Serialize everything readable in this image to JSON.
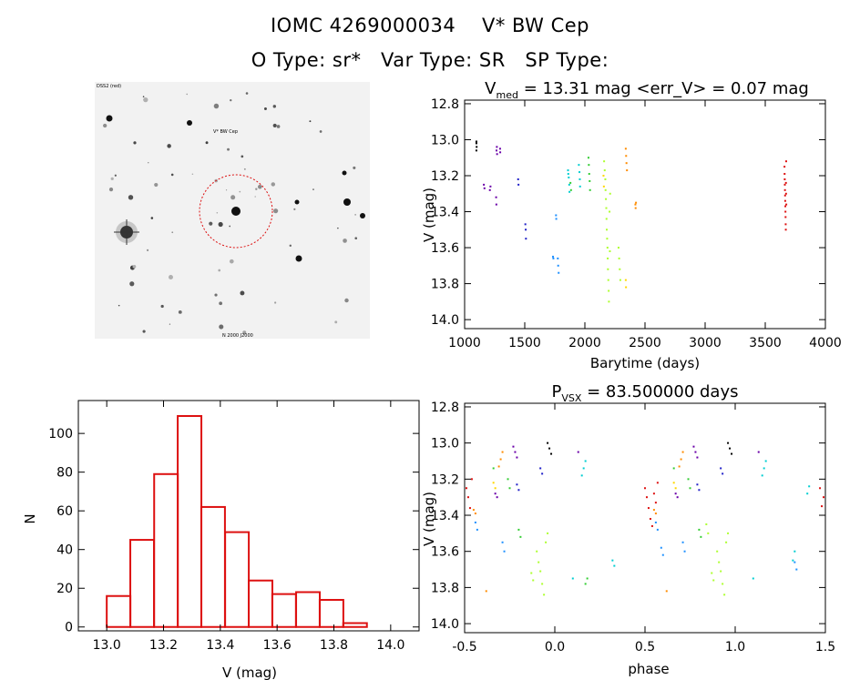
{
  "header": {
    "line1": "IOMC 4269000034    V* BW Cep",
    "line2": "O Type: sr*   Var Type: SR   SP Type:"
  },
  "image_panel": {
    "label_top_left": "DSS2 (red)",
    "label_top_center": "V* BW Cep",
    "label_bottom_center": "N 2000 J2000"
  },
  "chart_data": [
    {
      "type": "scatter",
      "id": "lightcurve",
      "title_main": "V",
      "title_sub": "med",
      "title_rest": " = 13.31 mag <err_V> = 0.07 mag",
      "xlabel": "Barytime (days)",
      "ylabel": "V (mag)",
      "xlim": [
        1000,
        4000
      ],
      "ylim": [
        14.05,
        12.78
      ],
      "y_inverted": true,
      "xticks": [
        1000,
        1500,
        2000,
        2500,
        3000,
        3500,
        4000
      ],
      "yticks": [
        12.8,
        13.0,
        13.2,
        13.4,
        13.6,
        13.8,
        14.0
      ],
      "series": [
        {
          "color": "#000000",
          "points": [
            [
              1098,
              13.02
            ],
            [
              1098,
              13.06
            ],
            [
              1098,
              13.01
            ],
            [
              1100,
              13.04
            ]
          ]
        },
        {
          "color": "#6a00a8",
          "points": [
            [
              1160,
              13.25
            ],
            [
              1165,
              13.27
            ],
            [
              1210,
              13.28
            ],
            [
              1215,
              13.26
            ],
            [
              1262,
              13.32
            ],
            [
              1264,
              13.36
            ],
            [
              1265,
              13.06
            ],
            [
              1268,
              13.04
            ],
            [
              1270,
              13.08
            ],
            [
              1295,
              13.05
            ],
            [
              1296,
              13.07
            ]
          ]
        },
        {
          "color": "#2020c8",
          "points": [
            [
              1445,
              13.22
            ],
            [
              1448,
              13.25
            ],
            [
              1505,
              13.47
            ],
            [
              1508,
              13.5
            ],
            [
              1510,
              13.55
            ]
          ]
        },
        {
          "color": "#1e90ff",
          "points": [
            [
              1735,
              13.65
            ],
            [
              1738,
              13.66
            ],
            [
              1760,
              13.42
            ],
            [
              1762,
              13.44
            ],
            [
              1775,
              13.66
            ],
            [
              1778,
              13.7
            ],
            [
              1782,
              13.74
            ]
          ]
        },
        {
          "color": "#00ced1",
          "points": [
            [
              1860,
              13.17
            ],
            [
              1862,
              13.19
            ],
            [
              1866,
              13.21
            ],
            [
              1870,
              13.25
            ],
            [
              1872,
              13.29
            ],
            [
              1950,
              13.14
            ],
            [
              1955,
              13.18
            ],
            [
              1958,
              13.22
            ],
            [
              1960,
              13.26
            ]
          ]
        },
        {
          "color": "#32cd32",
          "points": [
            [
              1880,
              13.24
            ],
            [
              1885,
              13.28
            ],
            [
              2030,
              13.1
            ],
            [
              2033,
              13.14
            ],
            [
              2036,
              13.19
            ],
            [
              2040,
              13.23
            ],
            [
              2043,
              13.28
            ]
          ]
        },
        {
          "color": "#adff2f",
          "points": [
            [
              2160,
              13.12
            ],
            [
              2165,
              13.17
            ],
            [
              2170,
              13.22
            ],
            [
              2172,
              13.28
            ],
            [
              2175,
              13.33
            ],
            [
              2178,
              13.38
            ],
            [
              2180,
              13.44
            ],
            [
              2182,
              13.5
            ],
            [
              2185,
              13.55
            ],
            [
              2188,
              13.6
            ],
            [
              2190,
              13.66
            ],
            [
              2192,
              13.72
            ],
            [
              2195,
              13.78
            ],
            [
              2198,
              13.84
            ],
            [
              2200,
              13.9
            ],
            [
              2205,
              13.4
            ],
            [
              2208,
              13.62
            ],
            [
              2210,
              13.3
            ],
            [
              2280,
              13.6
            ],
            [
              2285,
              13.66
            ],
            [
              2290,
              13.72
            ],
            [
              2295,
              13.78
            ]
          ]
        },
        {
          "color": "#ffd700",
          "points": [
            [
              2155,
              13.2
            ],
            [
              2158,
              13.26
            ],
            [
              2340,
              13.78
            ],
            [
              2342,
              13.82
            ]
          ]
        },
        {
          "color": "#ff8c00",
          "points": [
            [
              2340,
              13.05
            ],
            [
              2343,
              13.09
            ],
            [
              2346,
              13.13
            ],
            [
              2350,
              13.17
            ],
            [
              2420,
              13.36
            ],
            [
              2422,
              13.38
            ],
            [
              2425,
              13.35
            ]
          ]
        },
        {
          "color": "#dd1010",
          "points": [
            [
              3660,
              13.15
            ],
            [
              3661,
              13.19
            ],
            [
              3662,
              13.22
            ],
            [
              3663,
              13.25
            ],
            [
              3664,
              13.28
            ],
            [
              3665,
              13.31
            ],
            [
              3666,
              13.34
            ],
            [
              3667,
              13.37
            ],
            [
              3668,
              13.4
            ],
            [
              3669,
              13.43
            ],
            [
              3670,
              13.47
            ],
            [
              3671,
              13.5
            ],
            [
              3672,
              13.24
            ],
            [
              3673,
              13.3
            ],
            [
              3674,
              13.12
            ],
            [
              3675,
              13.36
            ]
          ]
        }
      ]
    },
    {
      "type": "bar",
      "id": "histogram",
      "xlabel": "V (mag)",
      "ylabel": "N",
      "xlim": [
        12.9,
        14.1
      ],
      "ylim": [
        -2,
        117
      ],
      "xticks": [
        13.0,
        13.2,
        13.4,
        13.6,
        13.8,
        14.0
      ],
      "yticks": [
        0,
        20,
        40,
        60,
        80,
        100
      ],
      "bin_width": 0.0833,
      "bins": [
        13.0,
        13.083,
        13.167,
        13.25,
        13.333,
        13.417,
        13.5,
        13.583,
        13.667,
        13.75,
        13.833
      ],
      "values": [
        16,
        45,
        79,
        109,
        62,
        49,
        24,
        17,
        18,
        14,
        2
      ]
    },
    {
      "type": "scatter",
      "id": "phased",
      "title_main": "P",
      "title_sub": "VSX",
      "title_rest": " = 83.500000 days",
      "xlabel": "phase",
      "ylabel": "V (mag)",
      "xlim": [
        -0.5,
        1.5
      ],
      "ylim": [
        14.05,
        12.78
      ],
      "y_inverted": true,
      "xticks": [
        -0.5,
        0.0,
        0.5,
        1.0,
        1.5
      ],
      "yticks": [
        12.8,
        13.0,
        13.2,
        13.4,
        13.6,
        13.8,
        14.0
      ],
      "series": [
        {
          "color": "#dd1010",
          "points": [
            [
              -0.49,
              13.25
            ],
            [
              -0.48,
              13.3
            ],
            [
              -0.47,
              13.36
            ],
            [
              -0.46,
              13.2
            ],
            [
              0.5,
              13.25
            ],
            [
              0.51,
              13.3
            ],
            [
              0.52,
              13.36
            ],
            [
              0.53,
              13.42
            ],
            [
              0.54,
              13.46
            ],
            [
              0.55,
              13.28
            ],
            [
              0.56,
              13.33
            ],
            [
              0.57,
              13.22
            ],
            [
              1.49,
              13.3
            ],
            [
              1.48,
              13.35
            ],
            [
              1.47,
              13.25
            ]
          ]
        },
        {
          "color": "#ff8c00",
          "points": [
            [
              -0.31,
              13.13
            ],
            [
              -0.3,
              13.09
            ],
            [
              -0.29,
              13.05
            ],
            [
              -0.45,
              13.37
            ],
            [
              -0.44,
              13.39
            ],
            [
              0.69,
              13.13
            ],
            [
              0.7,
              13.09
            ],
            [
              0.71,
              13.05
            ],
            [
              0.55,
              13.37
            ],
            [
              0.56,
              13.39
            ],
            [
              -0.38,
              13.82
            ],
            [
              0.62,
              13.82
            ]
          ]
        },
        {
          "color": "#ffd700",
          "points": [
            [
              -0.34,
              13.22
            ],
            [
              -0.33,
              13.25
            ],
            [
              0.66,
              13.22
            ],
            [
              0.67,
              13.25
            ]
          ]
        },
        {
          "color": "#adff2f",
          "points": [
            [
              -0.1,
              13.6
            ],
            [
              -0.09,
              13.66
            ],
            [
              -0.08,
              13.71
            ],
            [
              -0.07,
              13.78
            ],
            [
              -0.06,
              13.84
            ],
            [
              -0.05,
              13.55
            ],
            [
              -0.04,
              13.5
            ],
            [
              -0.13,
              13.72
            ],
            [
              -0.12,
              13.76
            ],
            [
              0.9,
              13.6
            ],
            [
              0.91,
              13.66
            ],
            [
              0.92,
              13.71
            ],
            [
              0.93,
              13.78
            ],
            [
              0.94,
              13.84
            ],
            [
              0.95,
              13.55
            ],
            [
              0.96,
              13.5
            ],
            [
              0.87,
              13.72
            ],
            [
              0.88,
              13.76
            ],
            [
              0.84,
              13.45
            ],
            [
              0.85,
              13.5
            ]
          ]
        },
        {
          "color": "#32cd32",
          "points": [
            [
              -0.2,
              13.48
            ],
            [
              -0.19,
              13.52
            ],
            [
              -0.26,
              13.2
            ],
            [
              -0.25,
              13.25
            ],
            [
              0.8,
              13.48
            ],
            [
              0.81,
              13.52
            ],
            [
              0.74,
              13.2
            ],
            [
              0.75,
              13.25
            ],
            [
              -0.34,
              13.14
            ],
            [
              0.66,
              13.14
            ],
            [
              0.18,
              13.75
            ],
            [
              0.17,
              13.78
            ]
          ]
        },
        {
          "color": "#00ced1",
          "points": [
            [
              0.15,
              13.18
            ],
            [
              0.16,
              13.14
            ],
            [
              0.17,
              13.1
            ],
            [
              1.15,
              13.18
            ],
            [
              1.16,
              13.14
            ],
            [
              1.17,
              13.1
            ],
            [
              0.32,
              13.65
            ],
            [
              0.33,
              13.68
            ],
            [
              1.32,
              13.65
            ],
            [
              1.33,
              13.6
            ],
            [
              0.1,
              13.75
            ],
            [
              1.1,
              13.75
            ],
            [
              1.4,
              13.28
            ],
            [
              1.41,
              13.24
            ]
          ]
        },
        {
          "color": "#1e90ff",
          "points": [
            [
              -0.44,
              13.44
            ],
            [
              -0.43,
              13.48
            ],
            [
              0.56,
              13.44
            ],
            [
              0.57,
              13.48
            ],
            [
              0.59,
              13.58
            ],
            [
              0.6,
              13.62
            ],
            [
              -0.29,
              13.55
            ],
            [
              -0.28,
              13.6
            ],
            [
              0.71,
              13.55
            ],
            [
              0.72,
              13.6
            ],
            [
              1.33,
              13.66
            ],
            [
              1.34,
              13.7
            ]
          ]
        },
        {
          "color": "#2020c8",
          "points": [
            [
              -0.21,
              13.23
            ],
            [
              -0.2,
              13.26
            ],
            [
              0.79,
              13.23
            ],
            [
              0.8,
              13.26
            ],
            [
              -0.08,
              13.14
            ],
            [
              -0.07,
              13.17
            ],
            [
              0.92,
              13.14
            ],
            [
              0.93,
              13.17
            ]
          ]
        },
        {
          "color": "#6a00a8",
          "points": [
            [
              -0.33,
              13.28
            ],
            [
              -0.32,
              13.3
            ],
            [
              -0.23,
              13.02
            ],
            [
              -0.22,
              13.05
            ],
            [
              -0.21,
              13.08
            ],
            [
              0.67,
              13.28
            ],
            [
              0.68,
              13.3
            ],
            [
              0.77,
              13.02
            ],
            [
              0.78,
              13.05
            ],
            [
              0.79,
              13.08
            ],
            [
              0.13,
              13.05
            ],
            [
              1.13,
              13.05
            ]
          ]
        },
        {
          "color": "#000000",
          "points": [
            [
              -0.04,
              13.0
            ],
            [
              -0.03,
              13.03
            ],
            [
              -0.02,
              13.06
            ],
            [
              0.96,
              13.0
            ],
            [
              0.97,
              13.03
            ],
            [
              0.98,
              13.06
            ]
          ]
        }
      ]
    }
  ]
}
